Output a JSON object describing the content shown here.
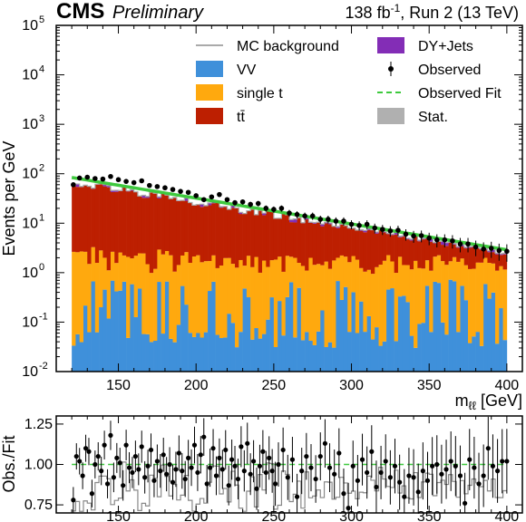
{
  "header": {
    "experiment": "CMS",
    "status": "Preliminary",
    "lumi_prefix": "138 fb",
    "lumi_exponent": "-1",
    "lumi_suffix": ", Run 2 (13 TeV)"
  },
  "colors": {
    "VV": "#3f90da",
    "single_t": "#ffa90e",
    "ttbar": "#bd1f01",
    "DY": "#832db6",
    "mc_line": "#aaaaaa",
    "stat": "#b0b0b0",
    "fit": "#3ec93e",
    "observed": "#000000"
  },
  "chart_data": [
    {
      "type": "histogram",
      "scale": "log",
      "xlim": [
        110,
        410
      ],
      "ylim": [
        0.01,
        100000
      ],
      "ylabel": "Events per GeV",
      "xlabel_base": "m",
      "xlabel_sub": "ℓℓ",
      "xlabel_unit": " [GeV]",
      "xticks": [
        150,
        200,
        250,
        300,
        350,
        400
      ],
      "yticks": [
        {
          "value": 0.01,
          "base": "10",
          "exp": "-2"
        },
        {
          "value": 0.1,
          "base": "10",
          "exp": "-1"
        },
        {
          "value": 1,
          "base": "10",
          "exp": "0"
        },
        {
          "value": 10,
          "base": "10",
          "exp": "1"
        },
        {
          "value": 100,
          "base": "10",
          "exp": "2"
        },
        {
          "value": 1000,
          "base": "10",
          "exp": "3"
        },
        {
          "value": 10000,
          "base": "10",
          "exp": "4"
        },
        {
          "value": 100000,
          "base": "10",
          "exp": "5"
        }
      ],
      "bin_range": [
        120,
        400
      ],
      "bin_width": 2.5,
      "series": [
        {
          "name": "VV",
          "key": "VV",
          "approx_level": "0.02-0.8, fluctuating"
        },
        {
          "name": "single t",
          "key": "single_t",
          "approx_range": [
            0.8,
            3
          ]
        },
        {
          "name": "tt̄",
          "key": "ttbar",
          "approx_range": [
            2.5,
            75
          ]
        },
        {
          "name": "DY+Jets",
          "key": "DY",
          "approx_range": [
            0.1,
            6
          ]
        },
        {
          "name": "MC background",
          "key": "mc_line"
        },
        {
          "name": "Observed",
          "key": "observed",
          "points": [
            [
              121,
              60
            ],
            [
              125,
              82
            ],
            [
              130,
              85
            ],
            [
              135,
              80
            ],
            [
              140,
              78
            ],
            [
              145,
              88
            ],
            [
              150,
              76
            ],
            [
              155,
              70
            ],
            [
              160,
              66
            ],
            [
              165,
              72
            ],
            [
              170,
              58
            ],
            [
              175,
              55
            ],
            [
              180,
              52
            ],
            [
              185,
              48
            ],
            [
              190,
              44
            ],
            [
              195,
              42
            ],
            [
              200,
              36
            ],
            [
              205,
              30
            ],
            [
              210,
              34
            ],
            [
              215,
              38
            ],
            [
              220,
              30
            ],
            [
              225,
              26
            ],
            [
              230,
              27
            ],
            [
              235,
              24
            ],
            [
              240,
              25
            ],
            [
              245,
              20
            ],
            [
              250,
              19
            ],
            [
              255,
              20
            ],
            [
              260,
              16
            ],
            [
              265,
              15
            ],
            [
              270,
              14
            ],
            [
              275,
              14
            ],
            [
              280,
              12
            ],
            [
              285,
              12
            ],
            [
              290,
              11
            ],
            [
              295,
              11
            ],
            [
              300,
              9.5
            ],
            [
              305,
              9
            ],
            [
              310,
              9.5
            ],
            [
              315,
              8
            ],
            [
              320,
              7.5
            ],
            [
              325,
              7
            ],
            [
              330,
              7.2
            ],
            [
              335,
              6
            ],
            [
              340,
              5.5
            ],
            [
              345,
              5.6
            ],
            [
              350,
              5
            ],
            [
              355,
              4.6
            ],
            [
              360,
              4.6
            ],
            [
              365,
              4.4
            ],
            [
              370,
              3.8
            ],
            [
              375,
              3.8
            ],
            [
              380,
              3.3
            ],
            [
              385,
              3
            ],
            [
              390,
              3.1
            ],
            [
              395,
              2.8
            ],
            [
              400,
              2.7
            ]
          ]
        },
        {
          "name": "Observed Fit",
          "key": "fit",
          "fit": {
            "x0": 120,
            "y0": 84,
            "x1": 400,
            "y1": 2.9
          }
        },
        {
          "name": "Stat.",
          "key": "stat"
        }
      ],
      "legend_order": [
        [
          "MC background",
          "DY+Jets"
        ],
        [
          "VV",
          "Observed"
        ],
        [
          "single t",
          "Observed Fit"
        ],
        [
          "tt̄",
          "Stat."
        ]
      ],
      "legend_placement": "top-right"
    },
    {
      "type": "ratio",
      "ylabel": "Obs./Fit",
      "xlim": [
        110,
        410
      ],
      "ylim": [
        0.7,
        1.3
      ],
      "xticks": [
        150,
        200,
        250,
        300,
        350,
        400
      ],
      "yticks": [
        {
          "value": 0.75,
          "label": "0.75"
        },
        {
          "value": 1.0,
          "label": "1.00"
        },
        {
          "value": 1.25,
          "label": "1.25"
        }
      ],
      "reference": 1.0,
      "points": [
        [
          121,
          0.78
        ],
        [
          123,
          1.05
        ],
        [
          125,
          1.02
        ],
        [
          127,
          0.93
        ],
        [
          129,
          1.1
        ],
        [
          131,
          1.08
        ],
        [
          133,
          0.82
        ],
        [
          135,
          1.0
        ],
        [
          137,
          1.05
        ],
        [
          139,
          0.96
        ],
        [
          141,
          1.12
        ],
        [
          143,
          0.88
        ],
        [
          145,
          1.18
        ],
        [
          147,
          0.92
        ],
        [
          149,
          1.04
        ],
        [
          151,
          1.01
        ],
        [
          153,
          0.87
        ],
        [
          155,
          1.12
        ],
        [
          157,
          0.98
        ],
        [
          159,
          0.95
        ],
        [
          161,
          1.05
        ],
        [
          163,
          0.97
        ],
        [
          165,
          1.11
        ],
        [
          167,
          0.92
        ],
        [
          169,
          0.99
        ],
        [
          171,
          1.09
        ],
        [
          173,
          0.9
        ],
        [
          175,
          1.02
        ],
        [
          177,
          0.96
        ],
        [
          179,
          1.06
        ],
        [
          181,
          0.94
        ],
        [
          183,
          1.0
        ],
        [
          185,
          0.89
        ],
        [
          187,
          0.97
        ],
        [
          189,
          1.07
        ],
        [
          191,
          0.96
        ],
        [
          193,
          0.91
        ],
        [
          195,
          1.04
        ],
        [
          197,
          0.98
        ],
        [
          199,
          1.12
        ],
        [
          201,
          0.95
        ],
        [
          203,
          1.06
        ],
        [
          205,
          1.17
        ],
        [
          207,
          0.88
        ],
        [
          209,
          0.98
        ],
        [
          211,
          1.1
        ],
        [
          213,
          0.93
        ],
        [
          215,
          1.04
        ],
        [
          217,
          0.97
        ],
        [
          219,
          1.09
        ],
        [
          221,
          0.87
        ],
        [
          223,
          1.03
        ],
        [
          225,
          0.99
        ],
        [
          227,
          0.91
        ],
        [
          229,
          1.11
        ],
        [
          231,
          0.96
        ],
        [
          233,
          1.13
        ],
        [
          235,
          0.94
        ],
        [
          237,
          1.02
        ],
        [
          239,
          0.85
        ],
        [
          241,
          0.99
        ],
        [
          243,
          1.08
        ],
        [
          245,
          0.95
        ],
        [
          247,
          1.04
        ],
        [
          249,
          0.96
        ],
        [
          251,
          0.88
        ],
        [
          253,
          1.0
        ],
        [
          256,
          1.09
        ],
        [
          259,
          0.92
        ],
        [
          262,
          1.03
        ],
        [
          265,
          0.8
        ],
        [
          268,
          0.96
        ],
        [
          271,
          1.05
        ],
        [
          274,
          0.98
        ],
        [
          277,
          0.91
        ],
        [
          280,
          1.05
        ],
        [
          283,
          1.13
        ],
        [
          286,
          0.98
        ],
        [
          289,
          0.94
        ],
        [
          292,
          1.07
        ],
        [
          295,
          0.82
        ],
        [
          298,
          0.73
        ],
        [
          301,
          0.99
        ],
        [
          304,
          0.9
        ],
        [
          307,
          1.03
        ],
        [
          310,
          0.95
        ],
        [
          313,
          1.08
        ],
        [
          316,
          0.86
        ],
        [
          319,
          0.95
        ],
        [
          322,
          1.02
        ],
        [
          325,
          0.92
        ],
        [
          328,
          0.99
        ],
        [
          331,
          0.89
        ],
        [
          334,
          0.8
        ],
        [
          337,
          0.93
        ],
        [
          340,
          0.92
        ],
        [
          343,
          0.83
        ],
        [
          346,
          0.96
        ],
        [
          349,
          0.9
        ],
        [
          352,
          0.99
        ],
        [
          355,
          1.0
        ],
        [
          358,
          0.94
        ],
        [
          361,
          0.97
        ],
        [
          364,
          1.02
        ],
        [
          367,
          0.99
        ],
        [
          370,
          0.93
        ],
        [
          373,
          0.76
        ],
        [
          376,
          1.03
        ],
        [
          379,
          0.98
        ],
        [
          382,
          0.88
        ],
        [
          385,
          0.93
        ],
        [
          388,
          1.1
        ],
        [
          391,
          0.99
        ],
        [
          394,
          0.96
        ],
        [
          397,
          1.02
        ],
        [
          400,
          1.02
        ]
      ]
    }
  ]
}
